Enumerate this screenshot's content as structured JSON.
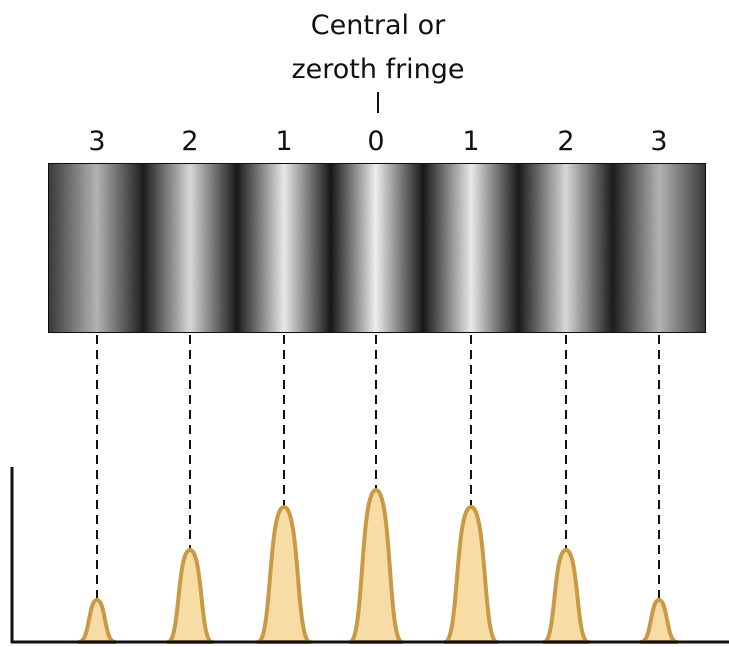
{
  "annotation": {
    "lines": [
      "Central or",
      "zeroth fringe"
    ]
  },
  "fringe_labels": [
    "3",
    "2",
    "1",
    "0",
    "1",
    "2",
    "3"
  ]
}
